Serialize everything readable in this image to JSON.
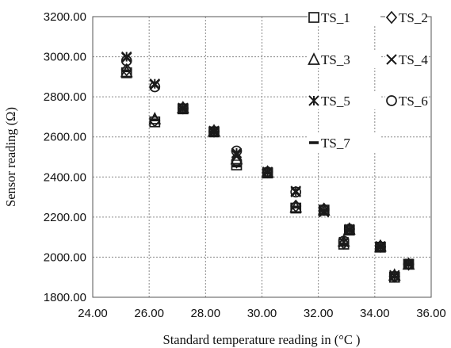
{
  "chart_data": {
    "type": "scatter",
    "title": "",
    "xlabel": "Standard temperature reading in (°C )",
    "ylabel": "Sensor reading (Ω)",
    "xlim": [
      24.0,
      36.0
    ],
    "ylim": [
      1800.0,
      3200.0
    ],
    "x_ticks": [
      "24.00",
      "26.00",
      "28.00",
      "30.00",
      "32.00",
      "34.00",
      "36.00"
    ],
    "y_ticks": [
      "1800.00",
      "2000.00",
      "2200.00",
      "2400.00",
      "2600.00",
      "2800.00",
      "3000.00",
      "3200.00"
    ],
    "grid": true,
    "legend_position": "top-right",
    "marker_color": "#1a1a1a",
    "series": [
      {
        "name": "TS_1",
        "marker": "square",
        "x": [
          25.2,
          26.2,
          27.2,
          28.3,
          29.1,
          30.2,
          31.2,
          32.2,
          32.9,
          33.1,
          34.2,
          34.7,
          35.2
        ],
        "y": [
          2920,
          2675,
          2740,
          2625,
          2460,
          2420,
          2245,
          2235,
          2065,
          2135,
          2050,
          1900,
          1965
        ]
      },
      {
        "name": "TS_2",
        "marker": "diamond",
        "x": [
          25.2,
          26.2,
          27.2,
          28.3,
          29.1,
          30.2,
          31.2,
          32.2,
          32.9,
          33.1,
          34.2,
          34.7,
          35.2
        ],
        "y": [
          2935,
          2680,
          2745,
          2630,
          2475,
          2425,
          2255,
          2240,
          2070,
          2140,
          2055,
          1905,
          1965
        ]
      },
      {
        "name": "TS_3",
        "marker": "triangle",
        "x": [
          25.2,
          26.2,
          27.2,
          28.3,
          29.1,
          30.2,
          31.2,
          32.2,
          32.9,
          33.1,
          34.2,
          34.7,
          35.2
        ],
        "y": [
          2925,
          2690,
          2745,
          2630,
          2490,
          2425,
          2250,
          2235,
          2080,
          2140,
          2055,
          1910,
          1965
        ]
      },
      {
        "name": "TS_4",
        "marker": "x",
        "x": [
          25.2,
          26.2,
          27.2,
          28.3,
          29.1,
          30.2,
          31.2,
          32.2,
          32.9,
          33.1,
          34.2,
          34.7,
          35.2
        ],
        "y": [
          2995,
          2860,
          2740,
          2625,
          2510,
          2425,
          2325,
          2225,
          2075,
          2135,
          2050,
          1905,
          1965
        ]
      },
      {
        "name": "TS_5",
        "marker": "asterisk",
        "x": [
          25.2,
          26.2,
          27.2,
          28.3,
          29.1,
          30.2,
          31.2,
          32.2,
          32.9,
          33.1,
          34.2,
          34.7,
          35.2
        ],
        "y": [
          3000,
          2865,
          2745,
          2630,
          2520,
          2425,
          2330,
          2230,
          2075,
          2140,
          2055,
          1910,
          1965
        ]
      },
      {
        "name": "TS_6",
        "marker": "circle",
        "x": [
          25.2,
          26.2,
          27.2,
          28.3,
          29.1,
          30.2,
          31.2,
          32.2,
          32.9,
          33.1,
          34.2,
          34.7,
          35.2
        ],
        "y": [
          2980,
          2850,
          2740,
          2625,
          2530,
          2425,
          2325,
          2235,
          2080,
          2140,
          2050,
          1905,
          1965
        ]
      },
      {
        "name": "TS_7",
        "marker": "dash",
        "x": [
          25.2,
          26.2,
          27.2,
          28.3,
          29.1,
          30.2,
          31.2,
          32.2,
          32.9,
          33.1,
          34.2,
          34.7,
          35.2
        ],
        "y": [
          2930,
          2685,
          2740,
          2625,
          2455,
          2420,
          2250,
          2235,
          2065,
          2135,
          2050,
          1900,
          1965
        ]
      }
    ]
  }
}
